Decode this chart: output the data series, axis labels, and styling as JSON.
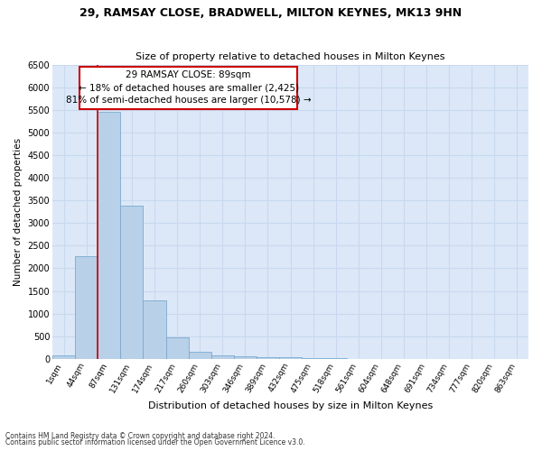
{
  "title1": "29, RAMSAY CLOSE, BRADWELL, MILTON KEYNES, MK13 9HN",
  "title2": "Size of property relative to detached houses in Milton Keynes",
  "xlabel": "Distribution of detached houses by size in Milton Keynes",
  "ylabel": "Number of detached properties",
  "footnote1": "Contains HM Land Registry data © Crown copyright and database right 2024.",
  "footnote2": "Contains public sector information licensed under the Open Government Licence v3.0.",
  "categories": [
    "1sqm",
    "44sqm",
    "87sqm",
    "131sqm",
    "174sqm",
    "217sqm",
    "260sqm",
    "303sqm",
    "346sqm",
    "389sqm",
    "432sqm",
    "475sqm",
    "518sqm",
    "561sqm",
    "604sqm",
    "648sqm",
    "691sqm",
    "734sqm",
    "777sqm",
    "820sqm",
    "863sqm"
  ],
  "values": [
    75,
    2270,
    5450,
    3380,
    1300,
    480,
    165,
    85,
    60,
    45,
    30,
    15,
    10,
    5,
    3,
    2,
    1,
    1,
    0,
    0,
    0
  ],
  "bar_color": "#b8d0e8",
  "bar_edge_color": "#7aaad0",
  "grid_color": "#c8d8ee",
  "background_color": "#dce8f8",
  "vline_color": "#cc0000",
  "annotation_text": "29 RAMSAY CLOSE: 89sqm\n← 18% of detached houses are smaller (2,425)\n81% of semi-detached houses are larger (10,578) →",
  "annotation_box_color": "#ffffff",
  "annotation_box_edge": "#cc0000",
  "ylim": [
    0,
    6500
  ],
  "yticks": [
    0,
    500,
    1000,
    1500,
    2000,
    2500,
    3000,
    3500,
    4000,
    4500,
    5000,
    5500,
    6000,
    6500
  ]
}
